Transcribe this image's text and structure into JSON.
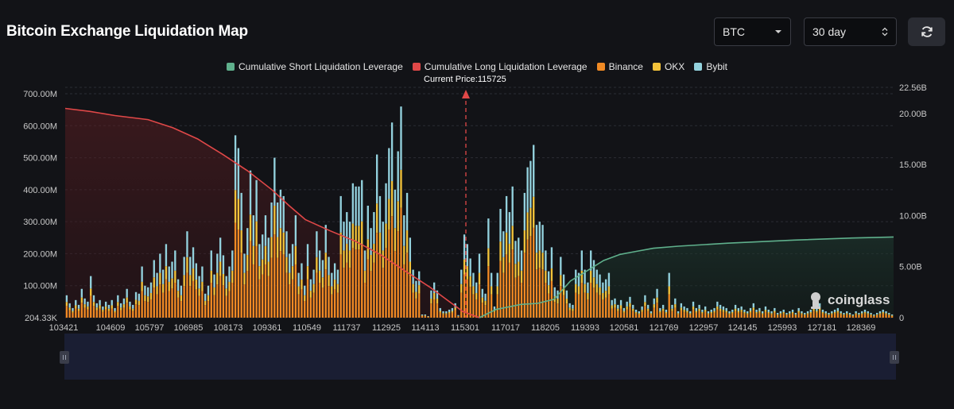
{
  "header": {
    "title": "Bitcoin Exchange Liquidation Map"
  },
  "controls": {
    "coin": {
      "value": "BTC",
      "icon": "caret-down-icon"
    },
    "period": {
      "value": "30 day",
      "icon": "updown-arrows-icon"
    },
    "refresh": {
      "icon": "refresh-icon"
    }
  },
  "watermark": {
    "text": "coinglass"
  },
  "colors": {
    "background": "#121317",
    "binance": "#f08a24",
    "okx": "#f2c23a",
    "bybit": "#93d1dd",
    "short": "#5fb08c",
    "long": "#e04848",
    "price_marker": "#e04848"
  },
  "chart_data": {
    "type": "bar",
    "title": "Bitcoin Exchange Liquidation Map",
    "current_price_label": "Current Price:115725",
    "current_price": 115725,
    "legend": [
      {
        "name": "Cumulative Short Liquidation Leverage",
        "color": "#5fb08c"
      },
      {
        "name": "Cumulative Long Liquidation Leverage",
        "color": "#e04848"
      },
      {
        "name": "Binance",
        "color": "#f08a24"
      },
      {
        "name": "OKX",
        "color": "#f2c23a"
      },
      {
        "name": "Bybit",
        "color": "#93d1dd"
      }
    ],
    "x_ticks": [
      "103421",
      "104609",
      "105797",
      "106985",
      "108173",
      "109361",
      "110549",
      "111737",
      "112925",
      "114113",
      "115301",
      "117017",
      "118205",
      "119393",
      "120581",
      "121769",
      "122957",
      "124145",
      "125993",
      "127181",
      "128369"
    ],
    "y_left": {
      "ticks": [
        "204.33K",
        "100.00M",
        "200.00M",
        "300.00M",
        "400.00M",
        "500.00M",
        "600.00M",
        "700.00M"
      ],
      "range": [
        0,
        700
      ]
    },
    "y_right": {
      "ticks": [
        "0",
        "5.00B",
        "10.00B",
        "15.00B",
        "20.00B",
        "22.56B"
      ],
      "range": [
        0,
        22.56
      ]
    },
    "bars_totals_millions": [
      70,
      45,
      30,
      55,
      40,
      90,
      60,
      50,
      130,
      70,
      45,
      55,
      35,
      50,
      40,
      55,
      30,
      70,
      45,
      60,
      90,
      50,
      40,
      80,
      75,
      160,
      100,
      95,
      110,
      180,
      140,
      200,
      150,
      230,
      160,
      175,
      210,
      120,
      100,
      190,
      270,
      190,
      220,
      170,
      130,
      160,
      75,
      100,
      210,
      135,
      200,
      250,
      195,
      130,
      160,
      210,
      570,
      530,
      390,
      200,
      280,
      460,
      320,
      430,
      230,
      260,
      320,
      250,
      360,
      500,
      360,
      400,
      380,
      270,
      200,
      230,
      320,
      140,
      170,
      100,
      230,
      120,
      150,
      270,
      210,
      180,
      290,
      190,
      140,
      170,
      150,
      380,
      300,
      330,
      300,
      420,
      410,
      410,
      430,
      210,
      350,
      280,
      330,
      510,
      380,
      300,
      420,
      530,
      610,
      400,
      520,
      660,
      320,
      390,
      250,
      150,
      115,
      145,
      10,
      10,
      5,
      85,
      110,
      85,
      30,
      20,
      20,
      25,
      30,
      45,
      8,
      150,
      260,
      230,
      185,
      140,
      110,
      200,
      90,
      75,
      310,
      140,
      35,
      140,
      340,
      270,
      380,
      330,
      410,
      240,
      250,
      210,
      390,
      470,
      490,
      540,
      290,
      300,
      290,
      210,
      145,
      220,
      95,
      85,
      190,
      135,
      85,
      45,
      40,
      150,
      140,
      210,
      150,
      110,
      210,
      180,
      150,
      135,
      110,
      120,
      140,
      55,
      60,
      40,
      55,
      30,
      50,
      65,
      40,
      25,
      20,
      35,
      70,
      40,
      20,
      60,
      90,
      30,
      40,
      25,
      140,
      40,
      60,
      20,
      45,
      35,
      30,
      20,
      50,
      30,
      40,
      25,
      35,
      20,
      25,
      30,
      50,
      40,
      35,
      30,
      20,
      25,
      40,
      30,
      35,
      25,
      20,
      30,
      45,
      25,
      30,
      20,
      35,
      25,
      20,
      30,
      15,
      20,
      25,
      15,
      20,
      25,
      15,
      30,
      20,
      15,
      20,
      25,
      40,
      30,
      45,
      25,
      20,
      15,
      20,
      25,
      30,
      20,
      15,
      20,
      15,
      10,
      20,
      15,
      20,
      25,
      20,
      15,
      10,
      15,
      20,
      25,
      20,
      15,
      10
    ]
  }
}
